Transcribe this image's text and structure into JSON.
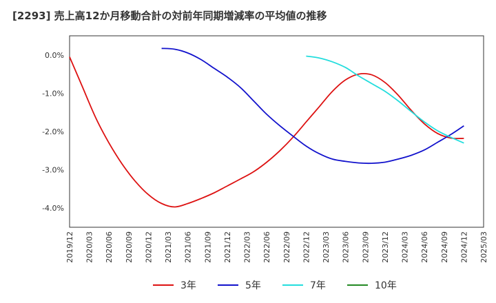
{
  "title": "[2293]  売上高12か月移動合計の対前年同期増減率の平均値の推移",
  "chart_data": {
    "type": "line",
    "ylim": [
      -4.5,
      0.5
    ],
    "yticks": [
      0,
      -1,
      -2,
      -3,
      -4
    ],
    "ytick_labels": [
      "0.0%",
      "-1.0%",
      "-2.0%",
      "-3.0%",
      "-4.0%"
    ],
    "xlim": [
      "2019/12",
      "2025/03"
    ],
    "xtick_labels": [
      "2019/12",
      "2020/03",
      "2020/06",
      "2020/09",
      "2020/12",
      "2021/03",
      "2021/06",
      "2021/09",
      "2021/12",
      "2022/03",
      "2022/06",
      "2022/09",
      "2022/12",
      "2023/03",
      "2023/06",
      "2023/09",
      "2023/12",
      "2024/03",
      "2024/06",
      "2024/09",
      "2024/12",
      "2025/03"
    ],
    "grid": true,
    "legend_position": "bottom",
    "series": [
      {
        "name": "3年",
        "color": "#dd1111",
        "points": [
          [
            "2019/12",
            -0.05
          ],
          [
            "2020/02",
            -0.85
          ],
          [
            "2020/04",
            -1.65
          ],
          [
            "2020/06",
            -2.3
          ],
          [
            "2020/08",
            -2.85
          ],
          [
            "2020/10",
            -3.3
          ],
          [
            "2020/12",
            -3.65
          ],
          [
            "2021/02",
            -3.88
          ],
          [
            "2021/04",
            -3.97
          ],
          [
            "2021/06",
            -3.88
          ],
          [
            "2021/08",
            -3.75
          ],
          [
            "2021/10",
            -3.6
          ],
          [
            "2021/12",
            -3.42
          ],
          [
            "2022/02",
            -3.24
          ],
          [
            "2022/04",
            -3.05
          ],
          [
            "2022/06",
            -2.8
          ],
          [
            "2022/08",
            -2.5
          ],
          [
            "2022/10",
            -2.15
          ],
          [
            "2022/12",
            -1.75
          ],
          [
            "2023/02",
            -1.35
          ],
          [
            "2023/04",
            -0.95
          ],
          [
            "2023/06",
            -0.65
          ],
          [
            "2023/08",
            -0.5
          ],
          [
            "2023/10",
            -0.52
          ],
          [
            "2023/12",
            -0.72
          ],
          [
            "2024/02",
            -1.05
          ],
          [
            "2024/04",
            -1.45
          ],
          [
            "2024/06",
            -1.8
          ],
          [
            "2024/08",
            -2.05
          ],
          [
            "2024/10",
            -2.17
          ],
          [
            "2024/12",
            -2.18
          ]
        ]
      },
      {
        "name": "5年",
        "color": "#1111cc",
        "points": [
          [
            "2021/02",
            0.17
          ],
          [
            "2021/04",
            0.15
          ],
          [
            "2021/06",
            0.05
          ],
          [
            "2021/08",
            -0.12
          ],
          [
            "2021/10",
            -0.35
          ],
          [
            "2021/12",
            -0.58
          ],
          [
            "2022/02",
            -0.85
          ],
          [
            "2022/04",
            -1.2
          ],
          [
            "2022/06",
            -1.55
          ],
          [
            "2022/08",
            -1.85
          ],
          [
            "2022/10",
            -2.12
          ],
          [
            "2022/12",
            -2.38
          ],
          [
            "2023/02",
            -2.58
          ],
          [
            "2023/04",
            -2.72
          ],
          [
            "2023/06",
            -2.78
          ],
          [
            "2023/08",
            -2.82
          ],
          [
            "2023/10",
            -2.83
          ],
          [
            "2023/12",
            -2.8
          ],
          [
            "2024/02",
            -2.72
          ],
          [
            "2024/04",
            -2.62
          ],
          [
            "2024/06",
            -2.48
          ],
          [
            "2024/08",
            -2.28
          ],
          [
            "2024/10",
            -2.08
          ],
          [
            "2024/12",
            -1.85
          ]
        ]
      },
      {
        "name": "7年",
        "color": "#22dddd",
        "points": [
          [
            "2022/12",
            -0.03
          ],
          [
            "2023/02",
            -0.08
          ],
          [
            "2023/04",
            -0.18
          ],
          [
            "2023/06",
            -0.33
          ],
          [
            "2023/08",
            -0.55
          ],
          [
            "2023/10",
            -0.75
          ],
          [
            "2023/12",
            -0.95
          ],
          [
            "2024/02",
            -1.2
          ],
          [
            "2024/04",
            -1.48
          ],
          [
            "2024/06",
            -1.75
          ],
          [
            "2024/08",
            -1.98
          ],
          [
            "2024/10",
            -2.15
          ],
          [
            "2024/12",
            -2.3
          ]
        ]
      },
      {
        "name": "10年",
        "color": "#228822",
        "points": []
      }
    ]
  }
}
